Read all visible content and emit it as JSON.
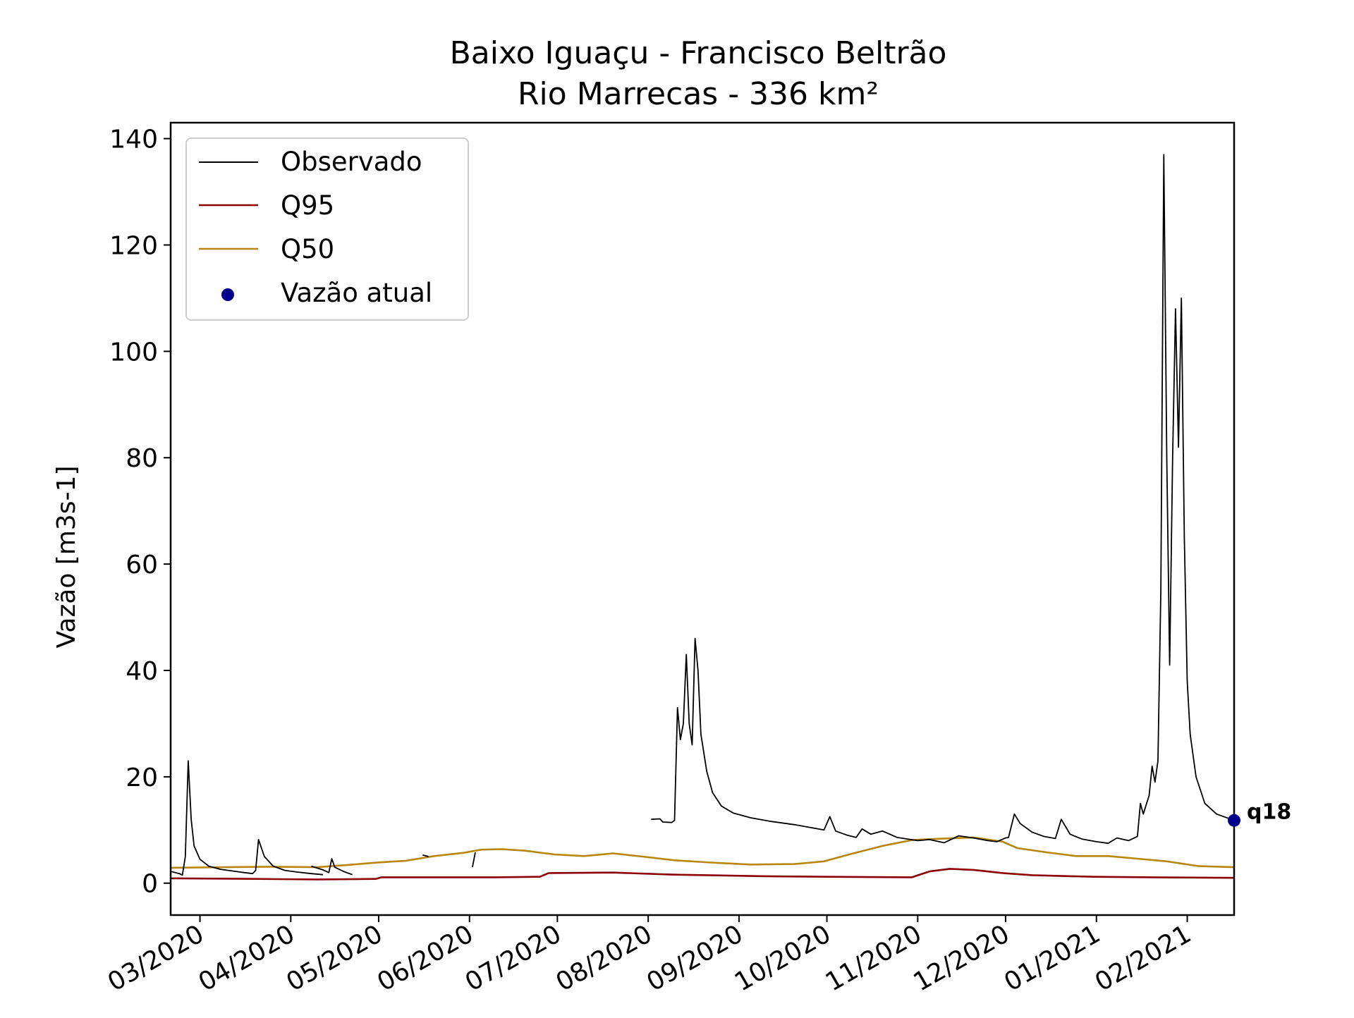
{
  "chart_data": {
    "type": "line",
    "title": "Baixo Iguaçu - Francisco Beltrão",
    "subtitle": "Rio Marrecas - 336 km²",
    "xlabel": "",
    "ylabel": "Vazão [m3s-1]",
    "xlim": [
      "2020-02-20",
      "2021-02-17"
    ],
    "ylim": [
      -6,
      143
    ],
    "yticks": [
      0,
      20,
      40,
      60,
      80,
      100,
      120,
      140
    ],
    "xticks": [
      {
        "date": "2020-03-01",
        "label": "03/2020"
      },
      {
        "date": "2020-04-01",
        "label": "04/2020"
      },
      {
        "date": "2020-05-01",
        "label": "05/2020"
      },
      {
        "date": "2020-06-01",
        "label": "06/2020"
      },
      {
        "date": "2020-07-01",
        "label": "07/2020"
      },
      {
        "date": "2020-08-01",
        "label": "08/2020"
      },
      {
        "date": "2020-09-01",
        "label": "09/2020"
      },
      {
        "date": "2020-10-01",
        "label": "10/2020"
      },
      {
        "date": "2020-11-01",
        "label": "11/2020"
      },
      {
        "date": "2020-12-01",
        "label": "12/2020"
      },
      {
        "date": "2021-01-01",
        "label": "01/2021"
      },
      {
        "date": "2021-02-01",
        "label": "02/2021"
      }
    ],
    "grid": false,
    "legend": {
      "position": "upper-left",
      "entries": [
        "Observado",
        "Q95",
        "Q50",
        "Vazão atual"
      ]
    },
    "colors": {
      "observado": "#000000",
      "q95": "#8b0000",
      "q50": "#b8860b",
      "atual": "#00008b"
    },
    "series": [
      {
        "name": "Q50",
        "color": "#b8860b",
        "points": [
          [
            "2020-02-20",
            2.9
          ],
          [
            "2020-03-10",
            3.0
          ],
          [
            "2020-03-25",
            3.1
          ],
          [
            "2020-04-10",
            3.0
          ],
          [
            "2020-04-20",
            3.4
          ],
          [
            "2020-05-01",
            3.9
          ],
          [
            "2020-05-10",
            4.2
          ],
          [
            "2020-05-20",
            5.1
          ],
          [
            "2020-05-30",
            5.7
          ],
          [
            "2020-06-05",
            6.3
          ],
          [
            "2020-06-12",
            6.4
          ],
          [
            "2020-06-20",
            6.1
          ],
          [
            "2020-06-30",
            5.4
          ],
          [
            "2020-07-10",
            5.1
          ],
          [
            "2020-07-20",
            5.6
          ],
          [
            "2020-07-30",
            5.0
          ],
          [
            "2020-08-10",
            4.3
          ],
          [
            "2020-08-25",
            3.8
          ],
          [
            "2020-09-05",
            3.5
          ],
          [
            "2020-09-20",
            3.6
          ],
          [
            "2020-09-30",
            4.1
          ],
          [
            "2020-10-10",
            5.6
          ],
          [
            "2020-10-20",
            7.0
          ],
          [
            "2020-10-30",
            8.1
          ],
          [
            "2020-11-10",
            8.4
          ],
          [
            "2020-11-20",
            8.6
          ],
          [
            "2020-11-30",
            7.8
          ],
          [
            "2020-12-05",
            6.6
          ],
          [
            "2020-12-15",
            5.8
          ],
          [
            "2020-12-25",
            5.1
          ],
          [
            "2021-01-05",
            5.1
          ],
          [
            "2021-01-15",
            4.6
          ],
          [
            "2021-01-25",
            4.1
          ],
          [
            "2021-02-05",
            3.2
          ],
          [
            "2021-02-17",
            3.0
          ]
        ]
      },
      {
        "name": "Q95",
        "color": "#8b0000",
        "points": [
          [
            "2020-02-20",
            0.9
          ],
          [
            "2020-03-20",
            0.8
          ],
          [
            "2020-04-10",
            0.7
          ],
          [
            "2020-04-30",
            0.8
          ],
          [
            "2020-05-02",
            1.1
          ],
          [
            "2020-06-10",
            1.1
          ],
          [
            "2020-06-25",
            1.2
          ],
          [
            "2020-06-28",
            1.9
          ],
          [
            "2020-07-20",
            2.0
          ],
          [
            "2020-08-10",
            1.6
          ],
          [
            "2020-09-10",
            1.3
          ],
          [
            "2020-10-01",
            1.2
          ],
          [
            "2020-10-30",
            1.1
          ],
          [
            "2020-11-05",
            2.2
          ],
          [
            "2020-11-12",
            2.7
          ],
          [
            "2020-11-20",
            2.5
          ],
          [
            "2020-11-30",
            1.9
          ],
          [
            "2020-12-10",
            1.5
          ],
          [
            "2020-12-31",
            1.2
          ],
          [
            "2021-01-20",
            1.1
          ],
          [
            "2021-02-17",
            1.0
          ]
        ]
      }
    ],
    "observado_segments": [
      [
        [
          "2020-02-20",
          2.2
        ],
        [
          "2020-02-23",
          1.8
        ],
        [
          "2020-02-24",
          1.5
        ],
        [
          "2020-02-25",
          5.0
        ],
        [
          "2020-02-26",
          23.0
        ],
        [
          "2020-02-27",
          12.0
        ],
        [
          "2020-02-28",
          7.0
        ],
        [
          "2020-03-01",
          4.5
        ],
        [
          "2020-03-04",
          3.2
        ],
        [
          "2020-03-08",
          2.6
        ],
        [
          "2020-03-12",
          2.3
        ],
        [
          "2020-03-16",
          2.0
        ],
        [
          "2020-03-19",
          1.8
        ],
        [
          "2020-03-20",
          2.4
        ],
        [
          "2020-03-21",
          8.2
        ],
        [
          "2020-03-23",
          5.0
        ],
        [
          "2020-03-26",
          3.2
        ],
        [
          "2020-03-30",
          2.4
        ],
        [
          "2020-04-03",
          2.1
        ],
        [
          "2020-04-08",
          1.8
        ],
        [
          "2020-04-12",
          1.6
        ]
      ],
      [
        [
          "2020-04-08",
          3.2
        ],
        [
          "2020-04-12",
          2.5
        ],
        [
          "2020-04-14",
          2.0
        ],
        [
          "2020-04-15",
          4.6
        ],
        [
          "2020-04-16",
          3.0
        ],
        [
          "2020-04-19",
          2.2
        ],
        [
          "2020-04-22",
          1.6
        ]
      ],
      [
        [
          "2020-05-16",
          5.3
        ],
        [
          "2020-05-18",
          5.0
        ]
      ],
      [
        [
          "2020-06-02",
          3.0
        ],
        [
          "2020-06-03",
          5.8
        ]
      ],
      [
        [
          "2020-08-02",
          12.0
        ],
        [
          "2020-08-05",
          12.1
        ],
        [
          "2020-08-06",
          11.5
        ],
        [
          "2020-08-09",
          11.4
        ],
        [
          "2020-08-10",
          11.8
        ],
        [
          "2020-08-11",
          33.0
        ],
        [
          "2020-08-12",
          27.0
        ],
        [
          "2020-08-13",
          30.0
        ],
        [
          "2020-08-14",
          43.0
        ],
        [
          "2020-08-15",
          30.0
        ],
        [
          "2020-08-16",
          26.0
        ],
        [
          "2020-08-17",
          46.0
        ],
        [
          "2020-08-18",
          40.0
        ],
        [
          "2020-08-19",
          28.0
        ],
        [
          "2020-08-21",
          21.0
        ],
        [
          "2020-08-23",
          17.0
        ],
        [
          "2020-08-26",
          14.5
        ],
        [
          "2020-08-30",
          13.2
        ],
        [
          "2020-09-05",
          12.3
        ],
        [
          "2020-09-12",
          11.6
        ],
        [
          "2020-09-20",
          11.0
        ],
        [
          "2020-09-28",
          10.2
        ],
        [
          "2020-09-30",
          10.0
        ],
        [
          "2020-10-02",
          12.5
        ],
        [
          "2020-10-04",
          9.8
        ],
        [
          "2020-10-08",
          9.0
        ],
        [
          "2020-10-11",
          8.6
        ],
        [
          "2020-10-13",
          10.2
        ],
        [
          "2020-10-16",
          9.2
        ],
        [
          "2020-10-20",
          9.8
        ],
        [
          "2020-10-25",
          8.6
        ],
        [
          "2020-11-01",
          8.0
        ],
        [
          "2020-11-05",
          8.2
        ],
        [
          "2020-11-10",
          7.6
        ],
        [
          "2020-11-15",
          8.9
        ],
        [
          "2020-11-20",
          8.5
        ],
        [
          "2020-11-25",
          8.0
        ],
        [
          "2020-11-28",
          7.8
        ],
        [
          "2020-12-01",
          8.5
        ],
        [
          "2020-12-02",
          8.6
        ],
        [
          "2020-12-04",
          13.0
        ],
        [
          "2020-12-06",
          11.2
        ],
        [
          "2020-12-10",
          9.6
        ],
        [
          "2020-12-14",
          8.8
        ],
        [
          "2020-12-18",
          8.4
        ],
        [
          "2020-12-20",
          12.0
        ],
        [
          "2020-12-23",
          9.2
        ],
        [
          "2020-12-27",
          8.3
        ],
        [
          "2021-01-01",
          7.8
        ],
        [
          "2021-01-05",
          7.5
        ],
        [
          "2021-01-08",
          8.5
        ],
        [
          "2021-01-12",
          8.0
        ],
        [
          "2021-01-15",
          8.8
        ],
        [
          "2021-01-16",
          15.0
        ],
        [
          "2021-01-17",
          13.0
        ],
        [
          "2021-01-19",
          16.5
        ],
        [
          "2021-01-20",
          22.0
        ],
        [
          "2021-01-21",
          19.0
        ],
        [
          "2021-01-22",
          23.0
        ],
        [
          "2021-01-23",
          55.0
        ],
        [
          "2021-01-24",
          137.0
        ],
        [
          "2021-01-25",
          80.0
        ],
        [
          "2021-01-26",
          41.0
        ],
        [
          "2021-01-27",
          80.0
        ],
        [
          "2021-01-28",
          108.0
        ],
        [
          "2021-01-29",
          82.0
        ],
        [
          "2021-01-30",
          110.0
        ],
        [
          "2021-01-31",
          65.0
        ],
        [
          "2021-02-01",
          38.0
        ],
        [
          "2021-02-02",
          28.0
        ],
        [
          "2021-02-04",
          20.0
        ],
        [
          "2021-02-07",
          15.0
        ],
        [
          "2021-02-11",
          13.0
        ],
        [
          "2021-02-17",
          11.8
        ]
      ]
    ],
    "current": {
      "name": "Vazão atual",
      "date": "2021-02-17",
      "value": 11.8,
      "label": "q18"
    }
  }
}
